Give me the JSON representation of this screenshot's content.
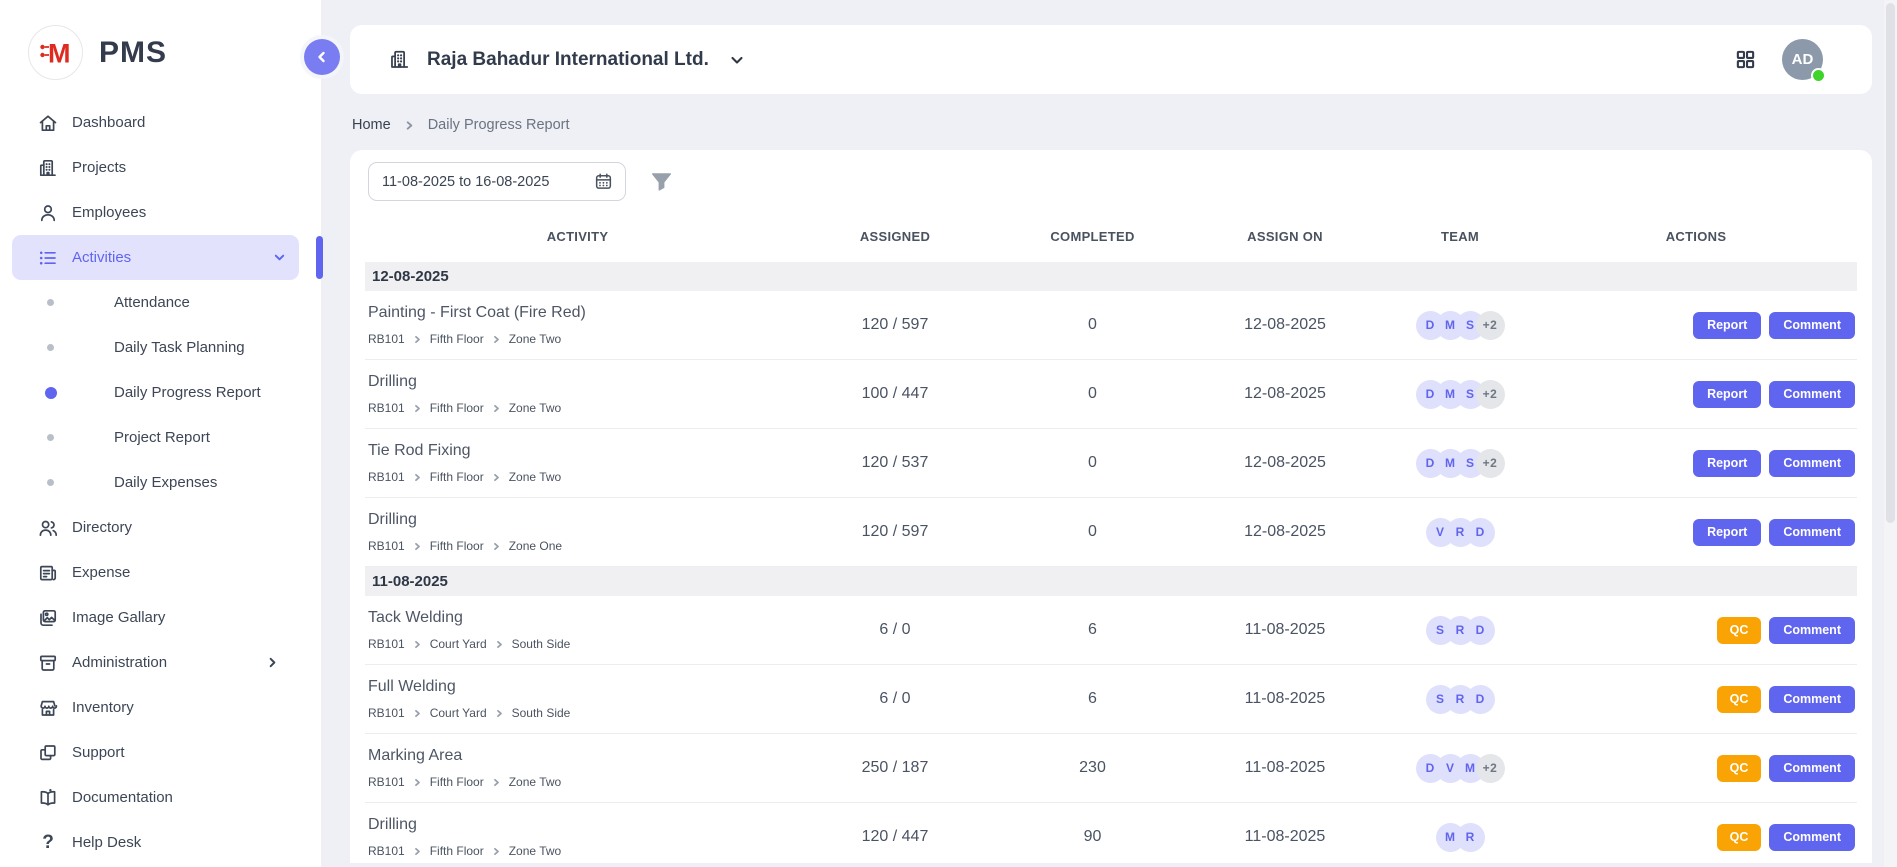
{
  "app": {
    "name": "PMS",
    "logo_letter": "M"
  },
  "colors": {
    "accent": "#6065f0",
    "accent_light": "#e3e2fd",
    "warning": "#f9a404",
    "badge_bg": "#dfe0fc",
    "badge_text": "#6164ee",
    "badge_extra_bg": "#e4e6ea",
    "badge_extra_text": "#6f7684",
    "logo_red": "#df2b1f",
    "avatar_bg": "#8b99aa",
    "online_green": "#3fd32c"
  },
  "sidebar": {
    "items": [
      {
        "label": "Dashboard",
        "icon": "home"
      },
      {
        "label": "Projects",
        "icon": "building"
      },
      {
        "label": "Employees",
        "icon": "person"
      },
      {
        "label": "Activities",
        "icon": "list",
        "active": true,
        "expanded": true,
        "subitems": [
          {
            "label": "Attendance"
          },
          {
            "label": "Daily Task Planning"
          },
          {
            "label": "Daily Progress Report",
            "active": true
          },
          {
            "label": "Project Report"
          },
          {
            "label": "Daily Expenses"
          }
        ]
      },
      {
        "label": "Directory",
        "icon": "people"
      },
      {
        "label": "Expense",
        "icon": "receipt"
      },
      {
        "label": "Image Gallary",
        "icon": "image"
      },
      {
        "label": "Administration",
        "icon": "archive",
        "has_submenu": true
      },
      {
        "label": "Inventory",
        "icon": "store"
      },
      {
        "label": "Support",
        "icon": "copy"
      },
      {
        "label": "Documentation",
        "icon": "book"
      },
      {
        "label": "Help Desk",
        "icon": "question"
      }
    ]
  },
  "header": {
    "company": "Raja Bahadur International Ltd.",
    "avatar_initials": "AD"
  },
  "breadcrumb": {
    "home": "Home",
    "current": "Daily Progress Report"
  },
  "filters": {
    "date_range": "11-08-2025 to 16-08-2025"
  },
  "table": {
    "columns": [
      "ACTIVITY",
      "ASSIGNED",
      "COMPLETED",
      "ASSIGN ON",
      "TEAM",
      "ACTIONS"
    ],
    "groups": [
      {
        "date": "12-08-2025",
        "rows": [
          {
            "title": "Painting - First Coat (Fire Red)",
            "path": [
              "RB101",
              "Fifth Floor",
              "Zone Two"
            ],
            "assigned": "120 / 597",
            "completed": "0",
            "assign_on": "12-08-2025",
            "team": [
              "D",
              "M",
              "S"
            ],
            "team_extra": "+2",
            "actions": [
              {
                "label": "Report",
                "style": "primary"
              },
              {
                "label": "Comment",
                "style": "primary"
              }
            ]
          },
          {
            "title": "Drilling",
            "path": [
              "RB101",
              "Fifth Floor",
              "Zone Two"
            ],
            "assigned": "100 / 447",
            "completed": "0",
            "assign_on": "12-08-2025",
            "team": [
              "D",
              "M",
              "S"
            ],
            "team_extra": "+2",
            "actions": [
              {
                "label": "Report",
                "style": "primary"
              },
              {
                "label": "Comment",
                "style": "primary"
              }
            ]
          },
          {
            "title": "Tie Rod Fixing",
            "path": [
              "RB101",
              "Fifth Floor",
              "Zone Two"
            ],
            "assigned": "120 / 537",
            "completed": "0",
            "assign_on": "12-08-2025",
            "team": [
              "D",
              "M",
              "S"
            ],
            "team_extra": "+2",
            "actions": [
              {
                "label": "Report",
                "style": "primary"
              },
              {
                "label": "Comment",
                "style": "primary"
              }
            ]
          },
          {
            "title": "Drilling",
            "path": [
              "RB101",
              "Fifth Floor",
              "Zone One"
            ],
            "assigned": "120 / 597",
            "completed": "0",
            "assign_on": "12-08-2025",
            "team": [
              "V",
              "R",
              "D"
            ],
            "team_extra": null,
            "actions": [
              {
                "label": "Report",
                "style": "primary"
              },
              {
                "label": "Comment",
                "style": "primary"
              }
            ]
          }
        ]
      },
      {
        "date": "11-08-2025",
        "rows": [
          {
            "title": "Tack Welding",
            "path": [
              "RB101",
              "Court Yard",
              "South Side"
            ],
            "assigned": "6 / 0",
            "completed": "6",
            "assign_on": "11-08-2025",
            "team": [
              "S",
              "R",
              "D"
            ],
            "team_extra": null,
            "actions": [
              {
                "label": "QC",
                "style": "warning"
              },
              {
                "label": "Comment",
                "style": "primary"
              }
            ]
          },
          {
            "title": "Full Welding",
            "path": [
              "RB101",
              "Court Yard",
              "South Side"
            ],
            "assigned": "6 / 0",
            "completed": "6",
            "assign_on": "11-08-2025",
            "team": [
              "S",
              "R",
              "D"
            ],
            "team_extra": null,
            "actions": [
              {
                "label": "QC",
                "style": "warning"
              },
              {
                "label": "Comment",
                "style": "primary"
              }
            ]
          },
          {
            "title": "Marking Area",
            "path": [
              "RB101",
              "Fifth Floor",
              "Zone Two"
            ],
            "assigned": "250 / 187",
            "completed": "230",
            "assign_on": "11-08-2025",
            "team": [
              "D",
              "V",
              "M"
            ],
            "team_extra": "+2",
            "actions": [
              {
                "label": "QC",
                "style": "warning"
              },
              {
                "label": "Comment",
                "style": "primary"
              }
            ]
          },
          {
            "title": "Drilling",
            "path": [
              "RB101",
              "Fifth Floor",
              "Zone Two"
            ],
            "assigned": "120 / 447",
            "completed": "90",
            "assign_on": "11-08-2025",
            "team": [
              "M",
              "R"
            ],
            "team_extra": null,
            "actions": [
              {
                "label": "QC",
                "style": "warning"
              },
              {
                "label": "Comment",
                "style": "primary"
              }
            ]
          }
        ]
      }
    ]
  }
}
